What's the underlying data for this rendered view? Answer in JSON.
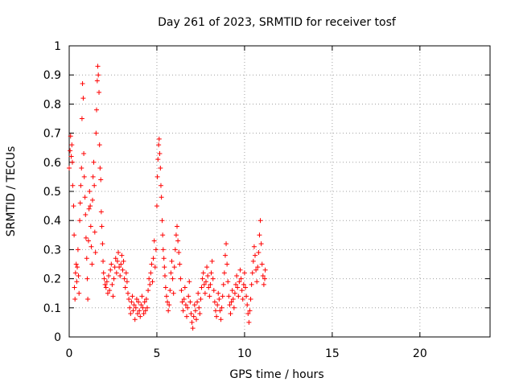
{
  "chart_data": {
    "type": "scatter",
    "title": "Day 261 of 2023, SRMTID for receiver tosf",
    "xlabel": "GPS time / hours",
    "ylabel": "SRMTID / TECUs",
    "xlim": [
      0,
      24
    ],
    "ylim": [
      0,
      1
    ],
    "x_ticks": [
      "0",
      "5",
      "10",
      "15",
      "20"
    ],
    "y_ticks": [
      "0",
      "0.1",
      "0.2",
      "0.3",
      "0.4",
      "0.5",
      "0.6",
      "0.7",
      "0.8",
      "0.9",
      "1"
    ],
    "x_tick_values": [
      0,
      5,
      10,
      15,
      20
    ],
    "y_tick_values": [
      0,
      0.1,
      0.2,
      0.3,
      0.4,
      0.5,
      0.6,
      0.7,
      0.8,
      0.9,
      1
    ],
    "grid": true,
    "marker": "+",
    "color": "#ff0000",
    "series": [
      {
        "name": "SRMTID",
        "points": [
          [
            0.0,
            0.58
          ],
          [
            0.05,
            0.64
          ],
          [
            0.08,
            0.69
          ],
          [
            0.12,
            0.62
          ],
          [
            0.15,
            0.66
          ],
          [
            0.18,
            0.6
          ],
          [
            0.2,
            0.52
          ],
          [
            0.25,
            0.45
          ],
          [
            0.28,
            0.35
          ],
          [
            0.3,
            0.17
          ],
          [
            0.33,
            0.13
          ],
          [
            0.36,
            0.22
          ],
          [
            0.4,
            0.25
          ],
          [
            0.43,
            0.19
          ],
          [
            0.46,
            0.24
          ],
          [
            0.5,
            0.3
          ],
          [
            0.53,
            0.21
          ],
          [
            0.56,
            0.15
          ],
          [
            0.6,
            0.4
          ],
          [
            0.63,
            0.46
          ],
          [
            0.66,
            0.52
          ],
          [
            0.7,
            0.58
          ],
          [
            0.73,
            0.75
          ],
          [
            0.76,
            0.87
          ],
          [
            0.8,
            0.82
          ],
          [
            0.83,
            0.63
          ],
          [
            0.86,
            0.55
          ],
          [
            0.9,
            0.48
          ],
          [
            0.93,
            0.42
          ],
          [
            0.96,
            0.34
          ],
          [
            1.0,
            0.27
          ],
          [
            1.03,
            0.2
          ],
          [
            1.06,
            0.13
          ],
          [
            1.1,
            0.33
          ],
          [
            1.13,
            0.44
          ],
          [
            1.16,
            0.5
          ],
          [
            1.2,
            0.45
          ],
          [
            1.23,
            0.38
          ],
          [
            1.26,
            0.31
          ],
          [
            1.3,
            0.25
          ],
          [
            1.33,
            0.47
          ],
          [
            1.36,
            0.55
          ],
          [
            1.4,
            0.6
          ],
          [
            1.43,
            0.52
          ],
          [
            1.46,
            0.36
          ],
          [
            1.5,
            0.29
          ],
          [
            1.53,
            0.7
          ],
          [
            1.56,
            0.78
          ],
          [
            1.6,
            0.88
          ],
          [
            1.63,
            0.93
          ],
          [
            1.66,
            0.9
          ],
          [
            1.7,
            0.84
          ],
          [
            1.73,
            0.66
          ],
          [
            1.76,
            0.58
          ],
          [
            1.8,
            0.54
          ],
          [
            1.83,
            0.43
          ],
          [
            1.86,
            0.38
          ],
          [
            1.9,
            0.32
          ],
          [
            1.93,
            0.26
          ],
          [
            1.96,
            0.22
          ],
          [
            2.0,
            0.2
          ],
          [
            2.05,
            0.18
          ],
          [
            2.1,
            0.17
          ],
          [
            2.15,
            0.19
          ],
          [
            2.2,
            0.15
          ],
          [
            2.25,
            0.21
          ],
          [
            2.3,
            0.16
          ],
          [
            2.35,
            0.23
          ],
          [
            2.4,
            0.25
          ],
          [
            2.45,
            0.18
          ],
          [
            2.5,
            0.14
          ],
          [
            2.55,
            0.2
          ],
          [
            2.6,
            0.24
          ],
          [
            2.65,
            0.27
          ],
          [
            2.7,
            0.22
          ],
          [
            2.75,
            0.26
          ],
          [
            2.8,
            0.29
          ],
          [
            2.85,
            0.24
          ],
          [
            2.9,
            0.21
          ],
          [
            2.95,
            0.25
          ],
          [
            3.0,
            0.28
          ],
          [
            3.05,
            0.23
          ],
          [
            3.1,
            0.26
          ],
          [
            3.15,
            0.2
          ],
          [
            3.2,
            0.17
          ],
          [
            3.25,
            0.22
          ],
          [
            3.3,
            0.19
          ],
          [
            3.35,
            0.15
          ],
          [
            3.4,
            0.13
          ],
          [
            3.45,
            0.1
          ],
          [
            3.5,
            0.08
          ],
          [
            3.55,
            0.12
          ],
          [
            3.6,
            0.14
          ],
          [
            3.65,
            0.09
          ],
          [
            3.7,
            0.11
          ],
          [
            3.75,
            0.06
          ],
          [
            3.8,
            0.1
          ],
          [
            3.85,
            0.13
          ],
          [
            3.9,
            0.08
          ],
          [
            3.95,
            0.12
          ],
          [
            4.0,
            0.09
          ],
          [
            4.05,
            0.07
          ],
          [
            4.1,
            0.11
          ],
          [
            4.15,
            0.14
          ],
          [
            4.2,
            0.1
          ],
          [
            4.25,
            0.08
          ],
          [
            4.3,
            0.12
          ],
          [
            4.35,
            0.09
          ],
          [
            4.4,
            0.13
          ],
          [
            4.45,
            0.1
          ],
          [
            4.5,
            0.16
          ],
          [
            4.55,
            0.2
          ],
          [
            4.6,
            0.18
          ],
          [
            4.65,
            0.22
          ],
          [
            4.7,
            0.25
          ],
          [
            4.75,
            0.19
          ],
          [
            4.8,
            0.27
          ],
          [
            4.85,
            0.33
          ],
          [
            4.9,
            0.24
          ],
          [
            4.95,
            0.3
          ],
          [
            5.0,
            0.45
          ],
          [
            5.03,
            0.55
          ],
          [
            5.06,
            0.61
          ],
          [
            5.1,
            0.66
          ],
          [
            5.13,
            0.68
          ],
          [
            5.16,
            0.63
          ],
          [
            5.2,
            0.58
          ],
          [
            5.23,
            0.52
          ],
          [
            5.26,
            0.48
          ],
          [
            5.3,
            0.4
          ],
          [
            5.33,
            0.35
          ],
          [
            5.36,
            0.3
          ],
          [
            5.4,
            0.27
          ],
          [
            5.43,
            0.24
          ],
          [
            5.46,
            0.21
          ],
          [
            5.5,
            0.17
          ],
          [
            5.55,
            0.14
          ],
          [
            5.6,
            0.12
          ],
          [
            5.65,
            0.09
          ],
          [
            5.7,
            0.11
          ],
          [
            5.75,
            0.16
          ],
          [
            5.8,
            0.22
          ],
          [
            5.85,
            0.26
          ],
          [
            5.9,
            0.2
          ],
          [
            5.95,
            0.15
          ],
          [
            6.0,
            0.24
          ],
          [
            6.05,
            0.3
          ],
          [
            6.1,
            0.35
          ],
          [
            6.15,
            0.38
          ],
          [
            6.2,
            0.33
          ],
          [
            6.25,
            0.29
          ],
          [
            6.3,
            0.25
          ],
          [
            6.35,
            0.2
          ],
          [
            6.4,
            0.16
          ],
          [
            6.45,
            0.12
          ],
          [
            6.5,
            0.09
          ],
          [
            6.55,
            0.13
          ],
          [
            6.6,
            0.17
          ],
          [
            6.65,
            0.11
          ],
          [
            6.7,
            0.07
          ],
          [
            6.75,
            0.1
          ],
          [
            6.8,
            0.14
          ],
          [
            6.85,
            0.19
          ],
          [
            6.9,
            0.12
          ],
          [
            6.95,
            0.08
          ],
          [
            7.0,
            0.05
          ],
          [
            7.05,
            0.03
          ],
          [
            7.1,
            0.07
          ],
          [
            7.15,
            0.11
          ],
          [
            7.2,
            0.09
          ],
          [
            7.25,
            0.06
          ],
          [
            7.3,
            0.12
          ],
          [
            7.35,
            0.15
          ],
          [
            7.4,
            0.1
          ],
          [
            7.45,
            0.08
          ],
          [
            7.5,
            0.13
          ],
          [
            7.55,
            0.17
          ],
          [
            7.6,
            0.2
          ],
          [
            7.65,
            0.22
          ],
          [
            7.7,
            0.18
          ],
          [
            7.75,
            0.15
          ],
          [
            7.8,
            0.19
          ],
          [
            7.85,
            0.24
          ],
          [
            7.9,
            0.21
          ],
          [
            7.95,
            0.17
          ],
          [
            8.0,
            0.14
          ],
          [
            8.05,
            0.18
          ],
          [
            8.1,
            0.22
          ],
          [
            8.15,
            0.26
          ],
          [
            8.2,
            0.2
          ],
          [
            8.25,
            0.16
          ],
          [
            8.3,
            0.12
          ],
          [
            8.35,
            0.09
          ],
          [
            8.4,
            0.07
          ],
          [
            8.45,
            0.11
          ],
          [
            8.5,
            0.15
          ],
          [
            8.55,
            0.13
          ],
          [
            8.6,
            0.09
          ],
          [
            8.65,
            0.06
          ],
          [
            8.7,
            0.1
          ],
          [
            8.75,
            0.14
          ],
          [
            8.8,
            0.18
          ],
          [
            8.85,
            0.22
          ],
          [
            8.9,
            0.28
          ],
          [
            8.95,
            0.32
          ],
          [
            9.0,
            0.25
          ],
          [
            9.05,
            0.19
          ],
          [
            9.1,
            0.14
          ],
          [
            9.15,
            0.11
          ],
          [
            9.2,
            0.08
          ],
          [
            9.25,
            0.12
          ],
          [
            9.3,
            0.16
          ],
          [
            9.35,
            0.13
          ],
          [
            9.4,
            0.1
          ],
          [
            9.45,
            0.15
          ],
          [
            9.5,
            0.18
          ],
          [
            9.55,
            0.21
          ],
          [
            9.6,
            0.17
          ],
          [
            9.65,
            0.14
          ],
          [
            9.7,
            0.19
          ],
          [
            9.75,
            0.23
          ],
          [
            9.8,
            0.2
          ],
          [
            9.85,
            0.16
          ],
          [
            9.9,
            0.13
          ],
          [
            9.95,
            0.18
          ],
          [
            10.0,
            0.22
          ],
          [
            10.05,
            0.17
          ],
          [
            10.1,
            0.14
          ],
          [
            10.15,
            0.11
          ],
          [
            10.2,
            0.08
          ],
          [
            10.25,
            0.05
          ],
          [
            10.3,
            0.09
          ],
          [
            10.35,
            0.13
          ],
          [
            10.4,
            0.18
          ],
          [
            10.45,
            0.22
          ],
          [
            10.5,
            0.26
          ],
          [
            10.55,
            0.31
          ],
          [
            10.6,
            0.28
          ],
          [
            10.65,
            0.23
          ],
          [
            10.7,
            0.19
          ],
          [
            10.75,
            0.24
          ],
          [
            10.8,
            0.29
          ],
          [
            10.85,
            0.35
          ],
          [
            10.9,
            0.4
          ],
          [
            10.95,
            0.32
          ],
          [
            11.0,
            0.25
          ],
          [
            11.05,
            0.21
          ],
          [
            11.1,
            0.18
          ],
          [
            11.15,
            0.2
          ],
          [
            11.18,
            0.23
          ]
        ]
      }
    ]
  }
}
